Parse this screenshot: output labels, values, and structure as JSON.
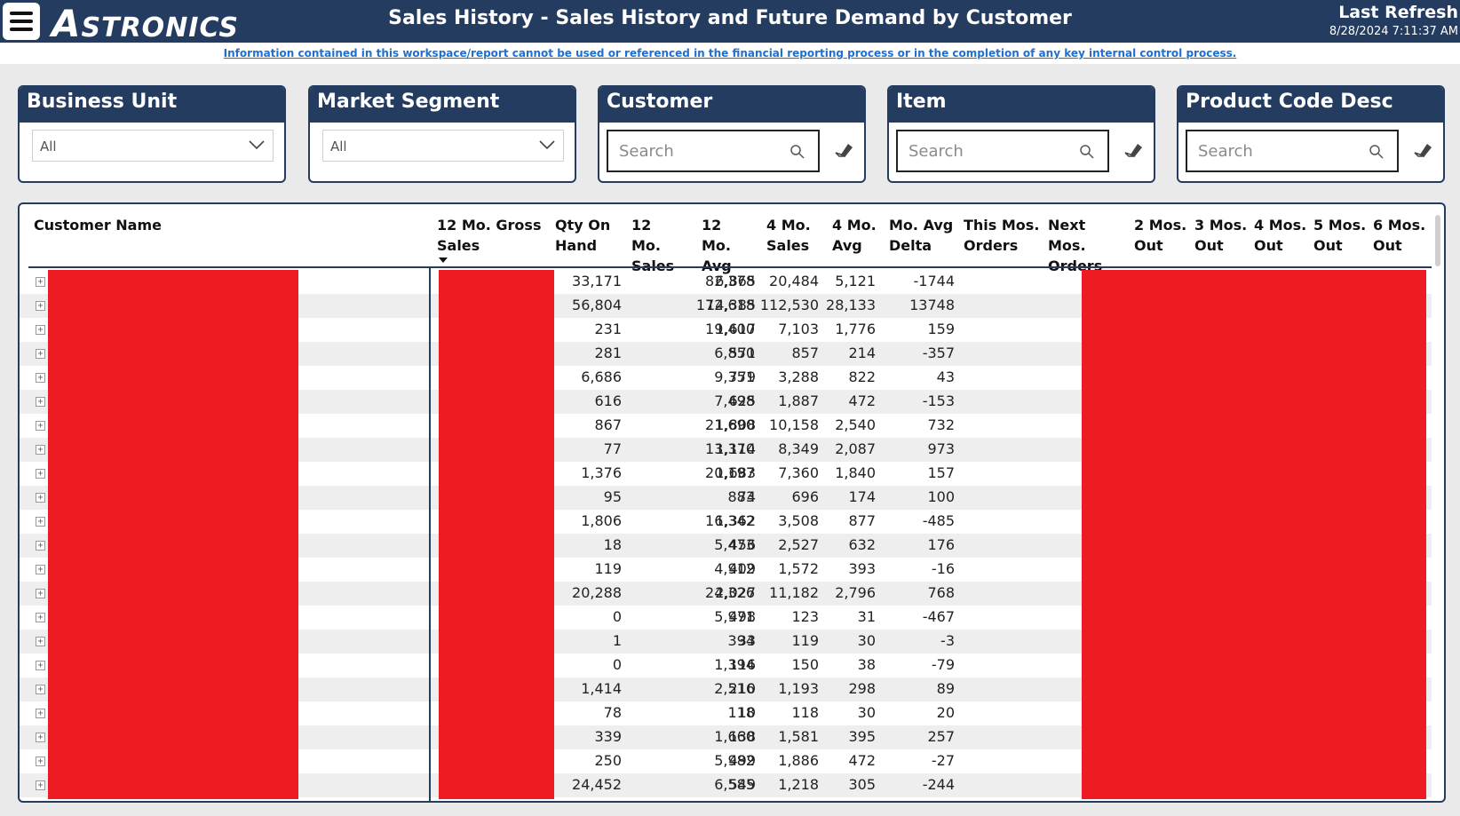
{
  "header": {
    "logo_first": "A",
    "logo_rest": "STRONICS",
    "title": "Sales History - Sales History and Future Demand by Customer",
    "refresh_label": "Last Refresh",
    "refresh_date": "8/28/2024 7:11:37 AM"
  },
  "notice": "Information contained in this workspace/report cannot be used or referenced in the financial reporting process or in the completion of any key internal control process.",
  "slicers": {
    "business_unit": {
      "label": "Business Unit",
      "value": "All"
    },
    "market_segment": {
      "label": "Market Segment",
      "value": "All"
    },
    "customer": {
      "label": "Customer",
      "placeholder": "Search"
    },
    "item": {
      "label": "Item",
      "placeholder": "Search"
    },
    "product_code": {
      "label": "Product Code Desc",
      "placeholder": "Search"
    }
  },
  "table": {
    "columns": [
      "Customer Name",
      "12 Mo. Gross Sales",
      "Qty On Hand",
      "12 Mo. Sales",
      "12 Mo. Avg",
      "4 Mo. Sales",
      "4 Mo. Avg",
      "Mo. Avg Delta",
      "This Mos. Orders",
      "Next Mos. Orders",
      "2 Mos. Out",
      "3 Mos. Out",
      "4 Mos. Out",
      "5 Mos. Out",
      "6 Mos. Out"
    ],
    "rows": [
      [
        "33,171",
        "82,378",
        "6,865",
        "20,484",
        "5,121",
        "-1744"
      ],
      [
        "56,804",
        "172,618",
        "14,385",
        "112,530",
        "28,133",
        "13748"
      ],
      [
        "231",
        "19,400",
        "1,617",
        "7,103",
        "1,776",
        "159"
      ],
      [
        "281",
        "6,850",
        "571",
        "857",
        "214",
        "-357"
      ],
      [
        "6,686",
        "9,351",
        "779",
        "3,288",
        "822",
        "43"
      ],
      [
        "616",
        "7,498",
        "625",
        "1,887",
        "472",
        "-153"
      ],
      [
        "867",
        "21,690",
        "1,808",
        "10,158",
        "2,540",
        "732"
      ],
      [
        "77",
        "13,370",
        "1,114",
        "8,349",
        "2,087",
        "973"
      ],
      [
        "1,376",
        "20,197",
        "1,683",
        "7,360",
        "1,840",
        "157"
      ],
      [
        "95",
        "883",
        "74",
        "696",
        "174",
        "100"
      ],
      [
        "1,806",
        "16,342",
        "1,362",
        "3,508",
        "877",
        "-485"
      ],
      [
        "18",
        "5,473",
        "456",
        "2,527",
        "632",
        "176"
      ],
      [
        "119",
        "4,912",
        "409",
        "1,572",
        "393",
        "-16"
      ],
      [
        "20,288",
        "24,326",
        "2,027",
        "11,182",
        "2,796",
        "768"
      ],
      [
        "0",
        "5,971",
        "498",
        "123",
        "31",
        "-467"
      ],
      [
        "1",
        "394",
        "33",
        "119",
        "30",
        "-3"
      ],
      [
        "0",
        "1,394",
        "116",
        "150",
        "38",
        "-79"
      ],
      [
        "1,414",
        "2,516",
        "210",
        "1,193",
        "298",
        "89"
      ],
      [
        "78",
        "118",
        "10",
        "118",
        "30",
        "20"
      ],
      [
        "339",
        "1,660",
        "138",
        "1,581",
        "395",
        "257"
      ],
      [
        "250",
        "5,982",
        "499",
        "1,886",
        "472",
        "-27"
      ],
      [
        "24,452",
        "6,585",
        "549",
        "1,218",
        "305",
        "-244"
      ]
    ]
  },
  "colors": {
    "header_bg": "#253c61",
    "redaction": "#ed1c24",
    "link": "#1f6fd1"
  }
}
